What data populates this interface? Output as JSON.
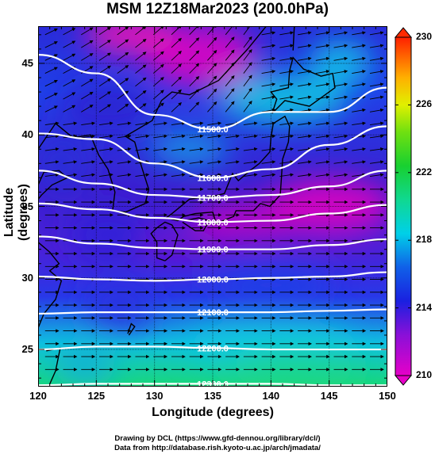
{
  "title": "MSM 12Z18Mar2023 (200.0hPa)",
  "xlabel": "Longitude (degrees)",
  "ylabel": "Latitude  (degrees)",
  "x_ticks": [
    "120",
    "125",
    "130",
    "135",
    "140",
    "145",
    "150"
  ],
  "y_ticks": [
    "45",
    "40",
    "35",
    "30",
    "25"
  ],
  "colorbar_ticks": [
    "230",
    "226",
    "222",
    "218",
    "214",
    "210"
  ],
  "footer_line1": "Drawing by DCL (https://www.gfd-dennou.org/library/dcl/)",
  "footer_line2": "Data from http://database.rish.kyoto-u.ac.jp/arch/jmadata/",
  "chart_data": {
    "type": "heatmap",
    "title": "MSM 12Z18Mar2023 (200.0hPa)",
    "xlabel": "Longitude (degrees)",
    "ylabel": "Latitude  (degrees)",
    "xlim": [
      120,
      150
    ],
    "ylim": [
      22.4,
      47.6
    ],
    "colorbar_range": [
      210,
      230
    ],
    "colorbar_ticks": [
      210,
      214,
      218,
      222,
      226,
      230
    ],
    "contour_labels": [
      "11500.0",
      "11600.0",
      "11700.0",
      "11800.0",
      "11900.0",
      "12000.0",
      "12100.0",
      "12200.0",
      "12300.0"
    ],
    "contours": [
      {
        "label": "11500.0",
        "points": [
          [
            120,
            45.6
          ],
          [
            125,
            44.3
          ],
          [
            130,
            41.4
          ],
          [
            135,
            40.4
          ],
          [
            140,
            41.6
          ],
          [
            145,
            41.6
          ],
          [
            150,
            43.3
          ]
        ]
      },
      {
        "label": "11600.0",
        "points": [
          [
            120,
            40.1
          ],
          [
            125,
            39.7
          ],
          [
            130,
            38.0
          ],
          [
            135,
            37.0
          ],
          [
            140,
            37.6
          ],
          [
            145,
            39.3
          ],
          [
            150,
            40.6
          ]
        ]
      },
      {
        "label": "11700.0",
        "points": [
          [
            120,
            37.5
          ],
          [
            125,
            36.6
          ],
          [
            130,
            35.8
          ],
          [
            135,
            35.6
          ],
          [
            140,
            35.8
          ],
          [
            145,
            36.4
          ],
          [
            150,
            37.5
          ]
        ]
      },
      {
        "label": "11800.0",
        "points": [
          [
            120,
            35.2
          ],
          [
            125,
            34.8
          ],
          [
            130,
            34.2
          ],
          [
            135,
            33.9
          ],
          [
            140,
            34.0
          ],
          [
            145,
            34.5
          ],
          [
            150,
            35.1
          ]
        ]
      },
      {
        "label": "11900.0",
        "points": [
          [
            120,
            32.9
          ],
          [
            125,
            32.4
          ],
          [
            130,
            32.1
          ],
          [
            135,
            32.0
          ],
          [
            140,
            32.0
          ],
          [
            145,
            32.3
          ],
          [
            150,
            32.7
          ]
        ]
      },
      {
        "label": "12000.0",
        "points": [
          [
            120,
            30.1
          ],
          [
            125,
            29.9
          ],
          [
            130,
            29.8
          ],
          [
            135,
            29.9
          ],
          [
            140,
            30.0
          ],
          [
            145,
            30.1
          ],
          [
            150,
            30.4
          ]
        ]
      },
      {
        "label": "12100.0",
        "points": [
          [
            120,
            27.5
          ],
          [
            125,
            27.6
          ],
          [
            130,
            27.6
          ],
          [
            135,
            27.6
          ],
          [
            140,
            27.6
          ],
          [
            145,
            27.7
          ],
          [
            150,
            27.8
          ]
        ]
      },
      {
        "label": "12200.0",
        "points": [
          [
            120,
            25.0
          ],
          [
            125,
            25.2
          ],
          [
            130,
            25.2
          ],
          [
            135,
            25.1
          ],
          [
            140,
            25.0
          ],
          [
            145,
            25.0
          ],
          [
            150,
            25.0
          ]
        ]
      },
      {
        "label": "12300.0",
        "points": [
          [
            120,
            22.5
          ],
          [
            125,
            22.6
          ],
          [
            130,
            22.6
          ],
          [
            135,
            22.6
          ],
          [
            140,
            22.6
          ],
          [
            145,
            22.5
          ],
          [
            150,
            22.5
          ]
        ]
      }
    ],
    "temperature_regions": [
      {
        "description_value": 210,
        "lon": 130,
        "lat": 46
      },
      {
        "description_value": 211,
        "lon": 146,
        "lat": 34
      },
      {
        "description_value": 214,
        "lon": 125,
        "lat": 40
      },
      {
        "description_value": 216,
        "lon": 140,
        "lat": 42
      },
      {
        "description_value": 218,
        "lon": 140,
        "lat": 24
      }
    ],
    "colors": {
      "magenta": "#e600c8",
      "blue": "#1a2ee0",
      "cyan": "#00d8e0",
      "green": "#16d46a",
      "contour": "#ffffff",
      "coast": "#000000"
    }
  }
}
